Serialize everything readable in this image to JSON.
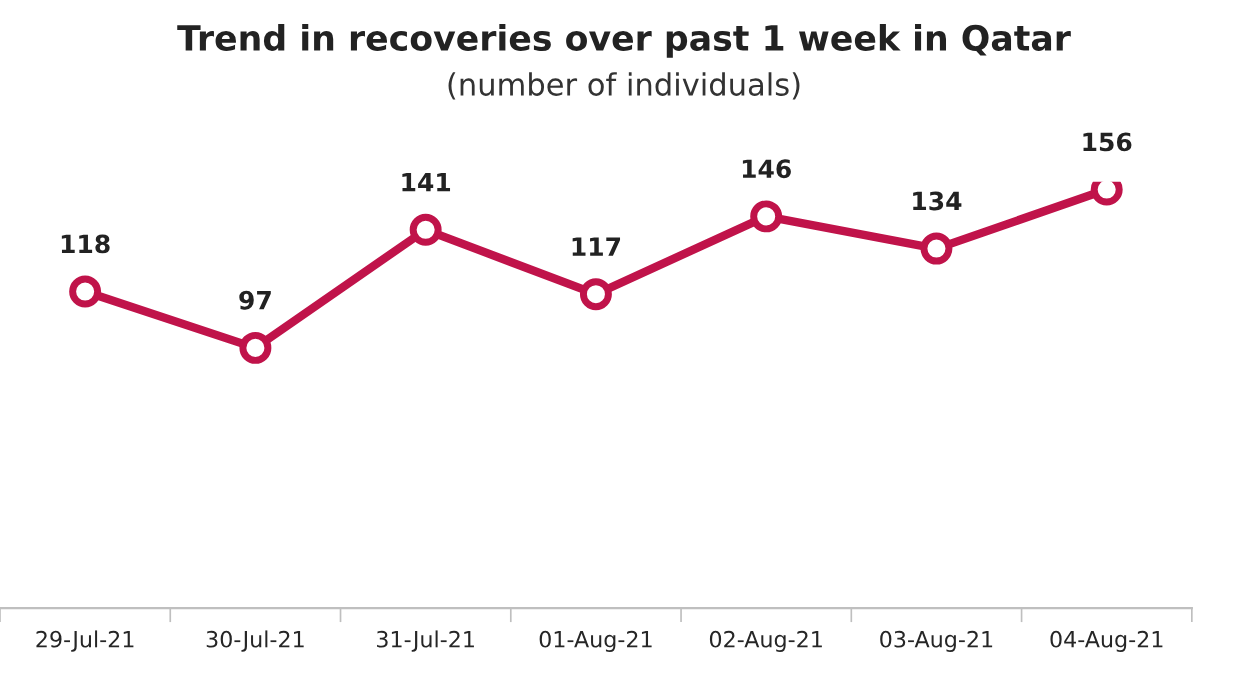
{
  "chart_data": {
    "type": "line",
    "title": "Trend in recoveries over past 1 week in Qatar",
    "subtitle": "(number of individuals)",
    "categories": [
      "29-Jul-21",
      "30-Jul-21",
      "31-Jul-21",
      "01-Aug-21",
      "02-Aug-21",
      "03-Aug-21",
      "04-Aug-21"
    ],
    "series": [
      {
        "color": "#c0134a",
        "values": [
          118,
          97,
          141,
          117,
          146,
          134,
          156
        ]
      }
    ],
    "data_labels": true,
    "marker": "circle",
    "line_style": "solid",
    "grid": false,
    "legend": false,
    "tick_labels": "x"
  }
}
